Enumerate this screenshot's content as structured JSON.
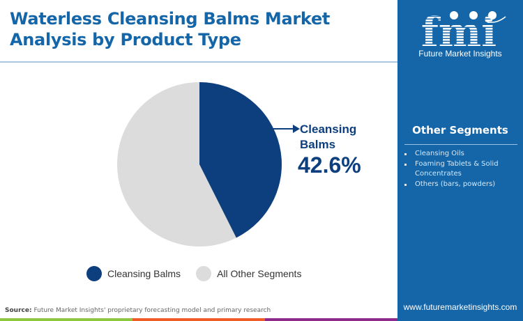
{
  "title": "Waterless Cleansing Balms Market Analysis by Product Type",
  "brand": {
    "logo_text": "fmi",
    "name": "Future Market Insights",
    "url": "www.futuremarketinsights.com",
    "color": "#1466a8"
  },
  "side_panel": {
    "heading": "Other Segments",
    "items": [
      "Cleansing Oils",
      "Foaming Tablets & Solid Concentrates",
      "Others (bars, powders)"
    ]
  },
  "callout": {
    "label": "Cleansing Balms",
    "value": "42.6%"
  },
  "legend": [
    {
      "label": "Cleansing Balms",
      "color": "#0d3f7f"
    },
    {
      "label": "All Other Segments",
      "color": "#dcdcdc"
    }
  ],
  "source": {
    "prefix": "Source:",
    "text": "Future Market Insights' proprietary forecasting model and primary research"
  },
  "footer_colors": [
    "#8dc63f",
    "#f15a29",
    "#8e2b8a"
  ],
  "chart_data": {
    "type": "pie",
    "title": "Waterless Cleansing Balms Market Analysis by Product Type",
    "categories": [
      "Cleansing Balms",
      "All Other Segments"
    ],
    "values": [
      42.6,
      57.4
    ],
    "colors": [
      "#0d3f7f",
      "#dcdcdc"
    ],
    "start_angle": "12 o'clock, clockwise",
    "annotations": [
      {
        "target": "Cleansing Balms",
        "text": "Cleansing Balms 42.6%"
      }
    ],
    "legend_position": "bottom"
  }
}
